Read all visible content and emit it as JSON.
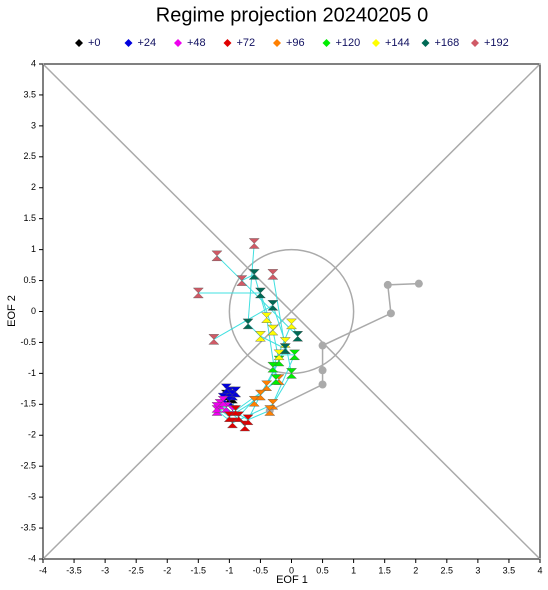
{
  "chart_data": {
    "type": "scatter",
    "title": "Regime projection 20240205 0",
    "xlabel": "EOF 1",
    "ylabel": "EOF 2",
    "xlim": [
      -4,
      4
    ],
    "ylim": [
      -4,
      4
    ],
    "xticks": [
      -4,
      -3.5,
      -3,
      -2.5,
      -2,
      -1.5,
      -1,
      -0.5,
      0,
      0.5,
      1,
      1.5,
      2,
      2.5,
      3,
      3.5,
      4
    ],
    "yticks": [
      -4,
      -3.5,
      -3,
      -2.5,
      -2,
      -1.5,
      -1,
      -0.5,
      0,
      0.5,
      1,
      1.5,
      2,
      2.5,
      3,
      3.5,
      4
    ],
    "member_link_color": "#40e0e0",
    "series": [
      {
        "name": "+0",
        "color": "#000000",
        "x": [
          -0.95,
          -1.0,
          -0.9,
          -1.05,
          -0.95,
          -1.0
        ],
        "y": [
          -1.35,
          -1.4,
          -1.3,
          -1.35,
          -1.4,
          -1.3
        ]
      },
      {
        "name": "+24",
        "color": "#0000dd",
        "x": [
          -1.0,
          -1.05,
          -0.95,
          -1.1,
          -0.9,
          -1.0
        ],
        "y": [
          -1.3,
          -1.25,
          -1.35,
          -1.4,
          -1.3,
          -1.45
        ]
      },
      {
        "name": "+48",
        "color": "#ee00ee",
        "x": [
          -1.15,
          -1.2,
          -1.05,
          -1.1,
          -0.95,
          -1.2
        ],
        "y": [
          -1.5,
          -1.6,
          -1.55,
          -1.45,
          -1.6,
          -1.55
        ]
      },
      {
        "name": "+72",
        "color": "#e00000",
        "x": [
          -0.85,
          -0.95,
          -0.75,
          -0.9,
          -0.7,
          -1.0
        ],
        "y": [
          -1.7,
          -1.8,
          -1.85,
          -1.6,
          -1.75,
          -1.7
        ]
      },
      {
        "name": "+96",
        "color": "#ff8000",
        "x": [
          -0.4,
          -0.3,
          -0.5,
          -0.2,
          -0.35,
          -0.6
        ],
        "y": [
          -1.2,
          -1.5,
          -1.35,
          -1.1,
          -1.6,
          -1.45
        ]
      },
      {
        "name": "+120",
        "color": "#00ee00",
        "x": [
          -0.2,
          0.0,
          -0.1,
          -0.3,
          0.05,
          -0.25
        ],
        "y": [
          -0.8,
          -1.0,
          -0.6,
          -0.9,
          -0.7,
          -1.1
        ]
      },
      {
        "name": "+144",
        "color": "#ffff00",
        "x": [
          -0.3,
          -0.1,
          -0.5,
          0.0,
          -0.2,
          -0.4
        ],
        "y": [
          -0.3,
          -0.5,
          -0.4,
          -0.2,
          -0.7,
          -0.1
        ]
      },
      {
        "name": "+168",
        "color": "#006a55",
        "x": [
          -0.5,
          -0.3,
          -0.7,
          0.1,
          -0.1,
          -0.6
        ],
        "y": [
          0.3,
          0.1,
          -0.2,
          -0.4,
          -0.6,
          0.6
        ]
      },
      {
        "name": "+192",
        "color": "#d05a66",
        "x": [
          -1.5,
          -1.25,
          -0.6,
          -1.2,
          -0.3,
          -0.8
        ],
        "y": [
          0.3,
          -0.45,
          1.1,
          0.9,
          0.6,
          0.5
        ]
      }
    ],
    "trajectory": {
      "color": "#aaaaaa",
      "x": [
        2.05,
        1.55,
        1.6,
        0.5,
        0.5,
        0.5,
        -0.35
      ],
      "y": [
        0.45,
        0.43,
        -0.03,
        -0.55,
        -0.95,
        -1.18,
        -1.6
      ]
    },
    "circle": {
      "r": 1,
      "color": "#aaaaaa"
    }
  }
}
